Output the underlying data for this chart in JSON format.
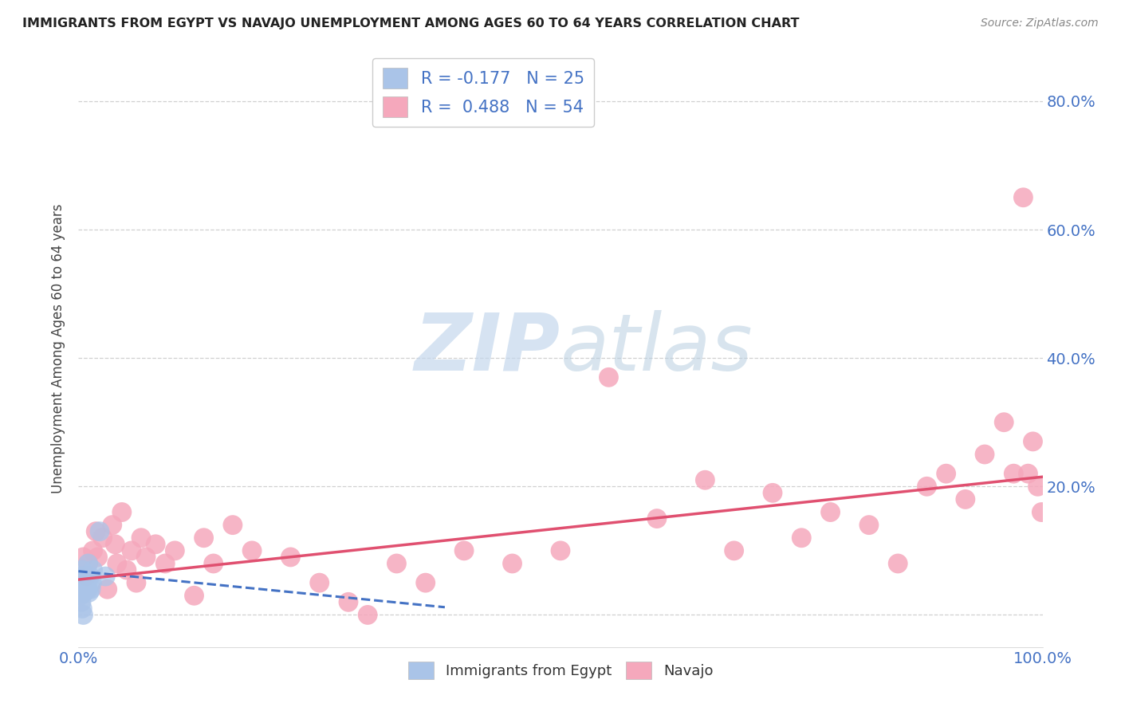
{
  "title": "IMMIGRANTS FROM EGYPT VS NAVAJO UNEMPLOYMENT AMONG AGES 60 TO 64 YEARS CORRELATION CHART",
  "source": "Source: ZipAtlas.com",
  "ylabel": "Unemployment Among Ages 60 to 64 years",
  "xlim": [
    0,
    1.0
  ],
  "ylim": [
    -0.05,
    0.88
  ],
  "legend1_label": "R = -0.177   N = 25",
  "legend2_label": "R =  0.488   N = 54",
  "legend1_color": "#aac4e8",
  "legend2_color": "#f5a8bc",
  "trend1_color": "#4472c4",
  "trend2_color": "#e05070",
  "grid_color": "#d0d0d0",
  "tick_color": "#4472c4",
  "bg_color": "#ffffff",
  "watermark_color": "#c5d8ed",
  "scatter_blue_x": [
    0.001,
    0.002,
    0.002,
    0.003,
    0.003,
    0.004,
    0.004,
    0.005,
    0.005,
    0.006,
    0.006,
    0.007,
    0.007,
    0.008,
    0.008,
    0.009,
    0.01,
    0.01,
    0.011,
    0.012,
    0.013,
    0.014,
    0.015,
    0.022,
    0.028
  ],
  "scatter_blue_y": [
    0.04,
    0.06,
    0.03,
    0.05,
    0.02,
    0.07,
    0.01,
    0.06,
    0.0,
    0.05,
    0.035,
    0.045,
    0.055,
    0.04,
    0.06,
    0.05,
    0.04,
    0.08,
    0.035,
    0.06,
    0.04,
    0.05,
    0.07,
    0.13,
    0.06
  ],
  "scatter_pink_x": [
    0.005,
    0.008,
    0.01,
    0.015,
    0.018,
    0.02,
    0.025,
    0.03,
    0.035,
    0.038,
    0.04,
    0.045,
    0.05,
    0.055,
    0.06,
    0.065,
    0.07,
    0.08,
    0.09,
    0.1,
    0.12,
    0.13,
    0.14,
    0.16,
    0.18,
    0.22,
    0.25,
    0.28,
    0.3,
    0.33,
    0.36,
    0.4,
    0.45,
    0.5,
    0.55,
    0.6,
    0.65,
    0.68,
    0.72,
    0.75,
    0.78,
    0.82,
    0.85,
    0.88,
    0.9,
    0.92,
    0.94,
    0.96,
    0.97,
    0.98,
    0.985,
    0.99,
    0.995,
    0.999
  ],
  "scatter_pink_y": [
    0.09,
    0.06,
    0.08,
    0.1,
    0.13,
    0.09,
    0.12,
    0.04,
    0.14,
    0.11,
    0.08,
    0.16,
    0.07,
    0.1,
    0.05,
    0.12,
    0.09,
    0.11,
    0.08,
    0.1,
    0.03,
    0.12,
    0.08,
    0.14,
    0.1,
    0.09,
    0.05,
    0.02,
    0.0,
    0.08,
    0.05,
    0.1,
    0.08,
    0.1,
    0.37,
    0.15,
    0.21,
    0.1,
    0.19,
    0.12,
    0.16,
    0.14,
    0.08,
    0.2,
    0.22,
    0.18,
    0.25,
    0.3,
    0.22,
    0.65,
    0.22,
    0.27,
    0.2,
    0.16
  ],
  "trend_blue_x0": 0.0,
  "trend_blue_x1": 0.38,
  "trend_blue_y0": 0.068,
  "trend_blue_y1": 0.012,
  "trend_pink_x0": 0.0,
  "trend_pink_x1": 1.0,
  "trend_pink_y0": 0.055,
  "trend_pink_y1": 0.215
}
